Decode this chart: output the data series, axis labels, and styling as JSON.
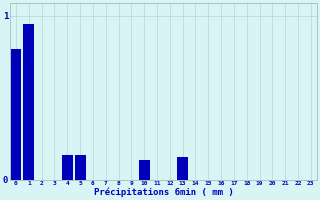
{
  "hours": [
    0,
    1,
    2,
    3,
    4,
    5,
    6,
    7,
    8,
    9,
    10,
    11,
    12,
    13,
    14,
    15,
    16,
    17,
    18,
    19,
    20,
    21,
    22,
    23
  ],
  "values": [
    0.8,
    0.95,
    0.0,
    0.0,
    0.15,
    0.15,
    0.0,
    0.0,
    0.0,
    0.0,
    0.12,
    0.0,
    0.0,
    0.14,
    0.0,
    0.0,
    0.0,
    0.0,
    0.0,
    0.0,
    0.0,
    0.0,
    0.0,
    0.0
  ],
  "bar_color": "#0000bb",
  "background_color": "#d8f4f4",
  "grid_color": "#b0d8d8",
  "text_color": "#0000bb",
  "xlabel": "Précipitations 6min ( mm )",
  "ylim": [
    0,
    1.08
  ],
  "yticks": [
    0,
    1
  ],
  "bar_width": 0.85
}
